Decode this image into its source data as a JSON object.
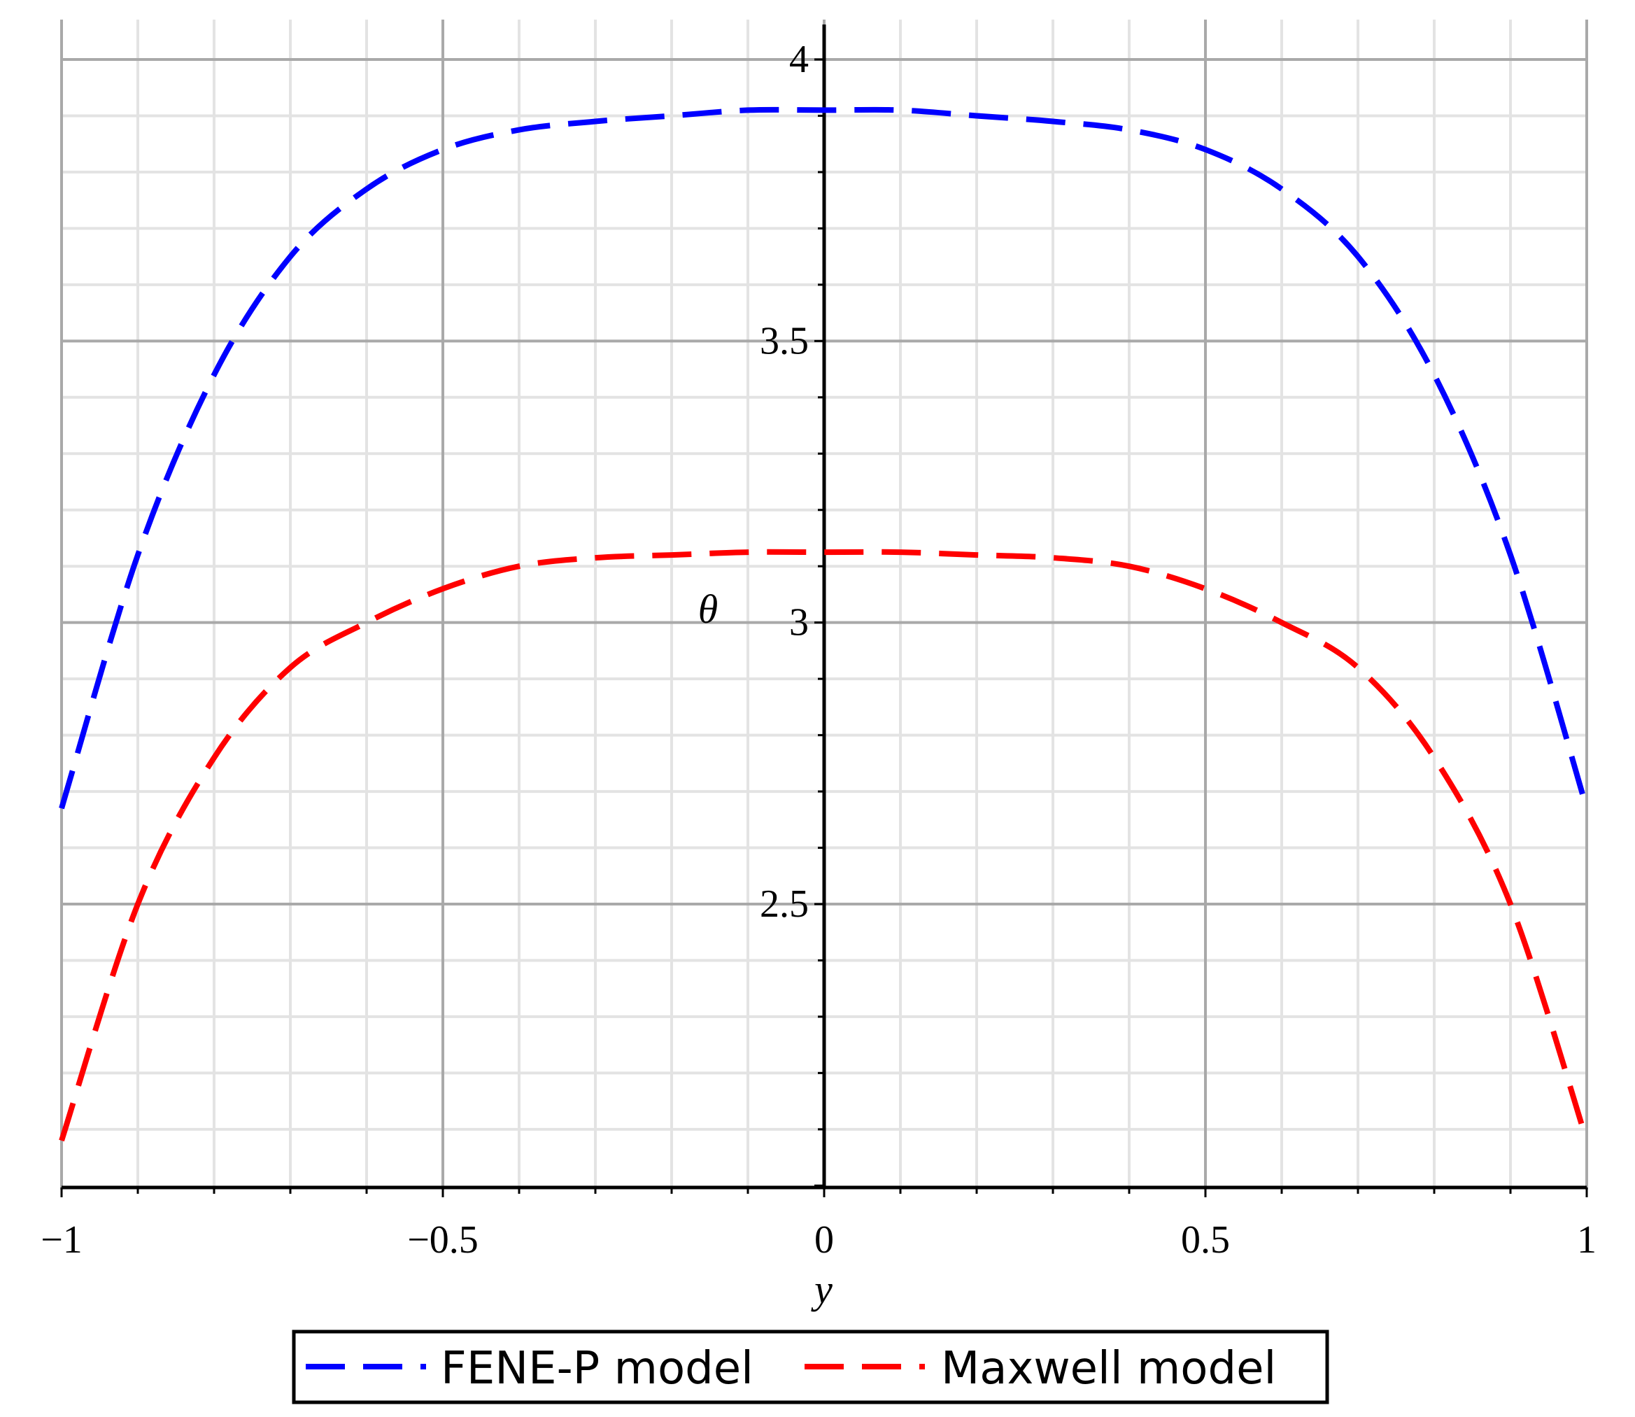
{
  "chart_data": {
    "type": "line",
    "title": "",
    "xlabel": "y",
    "ylabel": "θ",
    "xlim": [
      -1,
      1
    ],
    "ylim": [
      2.0,
      4.05
    ],
    "x_ticks": [
      -1,
      -0.5,
      0,
      0.5,
      1
    ],
    "x_tick_labels": [
      "−1",
      "−0.5",
      "0",
      "0.5",
      "1"
    ],
    "y_ticks": [
      2.5,
      3,
      3.5,
      4
    ],
    "y_tick_labels": [
      "2.5",
      "3",
      "3.5",
      "4"
    ],
    "grid": true,
    "legend_position": "bottom-center",
    "x": [
      -1.0,
      -0.9,
      -0.8,
      -0.7,
      -0.6,
      -0.5,
      -0.4,
      -0.3,
      -0.2,
      -0.1,
      0.0,
      0.1,
      0.2,
      0.3,
      0.4,
      0.5,
      0.6,
      0.7,
      0.8,
      0.9,
      1.0
    ],
    "series": [
      {
        "name": "FENE-P model",
        "color": "#0000ff",
        "style": "dashed",
        "values": [
          2.67,
          3.12,
          3.44,
          3.65,
          3.77,
          3.84,
          3.875,
          3.89,
          3.9,
          3.91,
          3.91,
          3.91,
          3.9,
          3.89,
          3.875,
          3.84,
          3.77,
          3.65,
          3.44,
          3.12,
          2.67
        ]
      },
      {
        "name": "Maxwell model",
        "color": "#ff0000",
        "style": "dashed",
        "values": [
          2.08,
          2.5,
          2.76,
          2.92,
          3.0,
          3.06,
          3.1,
          3.115,
          3.12,
          3.125,
          3.125,
          3.125,
          3.12,
          3.115,
          3.1,
          3.06,
          3.0,
          2.92,
          2.76,
          2.5,
          2.08
        ]
      }
    ]
  }
}
